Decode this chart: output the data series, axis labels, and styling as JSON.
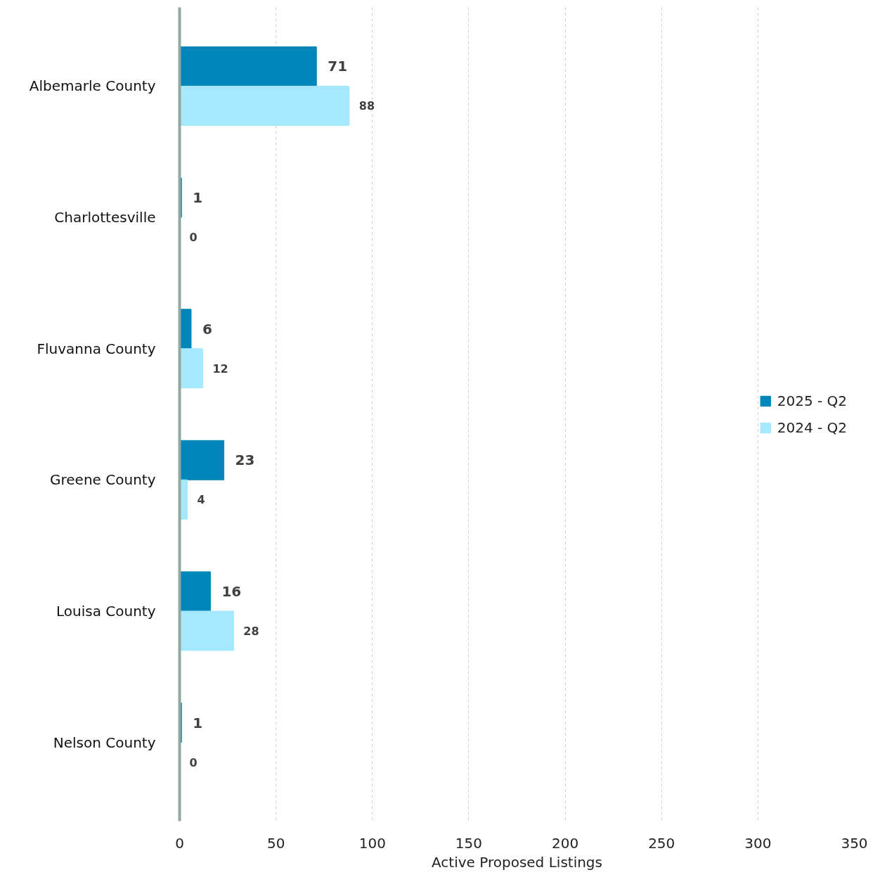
{
  "chart_data": {
    "type": "bar",
    "orientation": "horizontal",
    "categories": [
      "Albemarle County",
      "Charlottesville",
      "Fluvanna County",
      "Greene County",
      "Louisa County",
      "Nelson County"
    ],
    "series": [
      {
        "name": "2025 - Q2",
        "color": "#0086b8",
        "values": [
          71,
          1,
          6,
          23,
          16,
          1
        ]
      },
      {
        "name": "2024 - Q2",
        "color": "#a6e8fd",
        "values": [
          88,
          0,
          12,
          4,
          28,
          0
        ]
      }
    ],
    "xlabel": "Active Proposed Listings",
    "xlim": [
      0,
      350
    ],
    "xticks": [
      0,
      50,
      100,
      150,
      200,
      250,
      300,
      350
    ],
    "grid": "x",
    "legend": "right",
    "data_labels": true
  }
}
